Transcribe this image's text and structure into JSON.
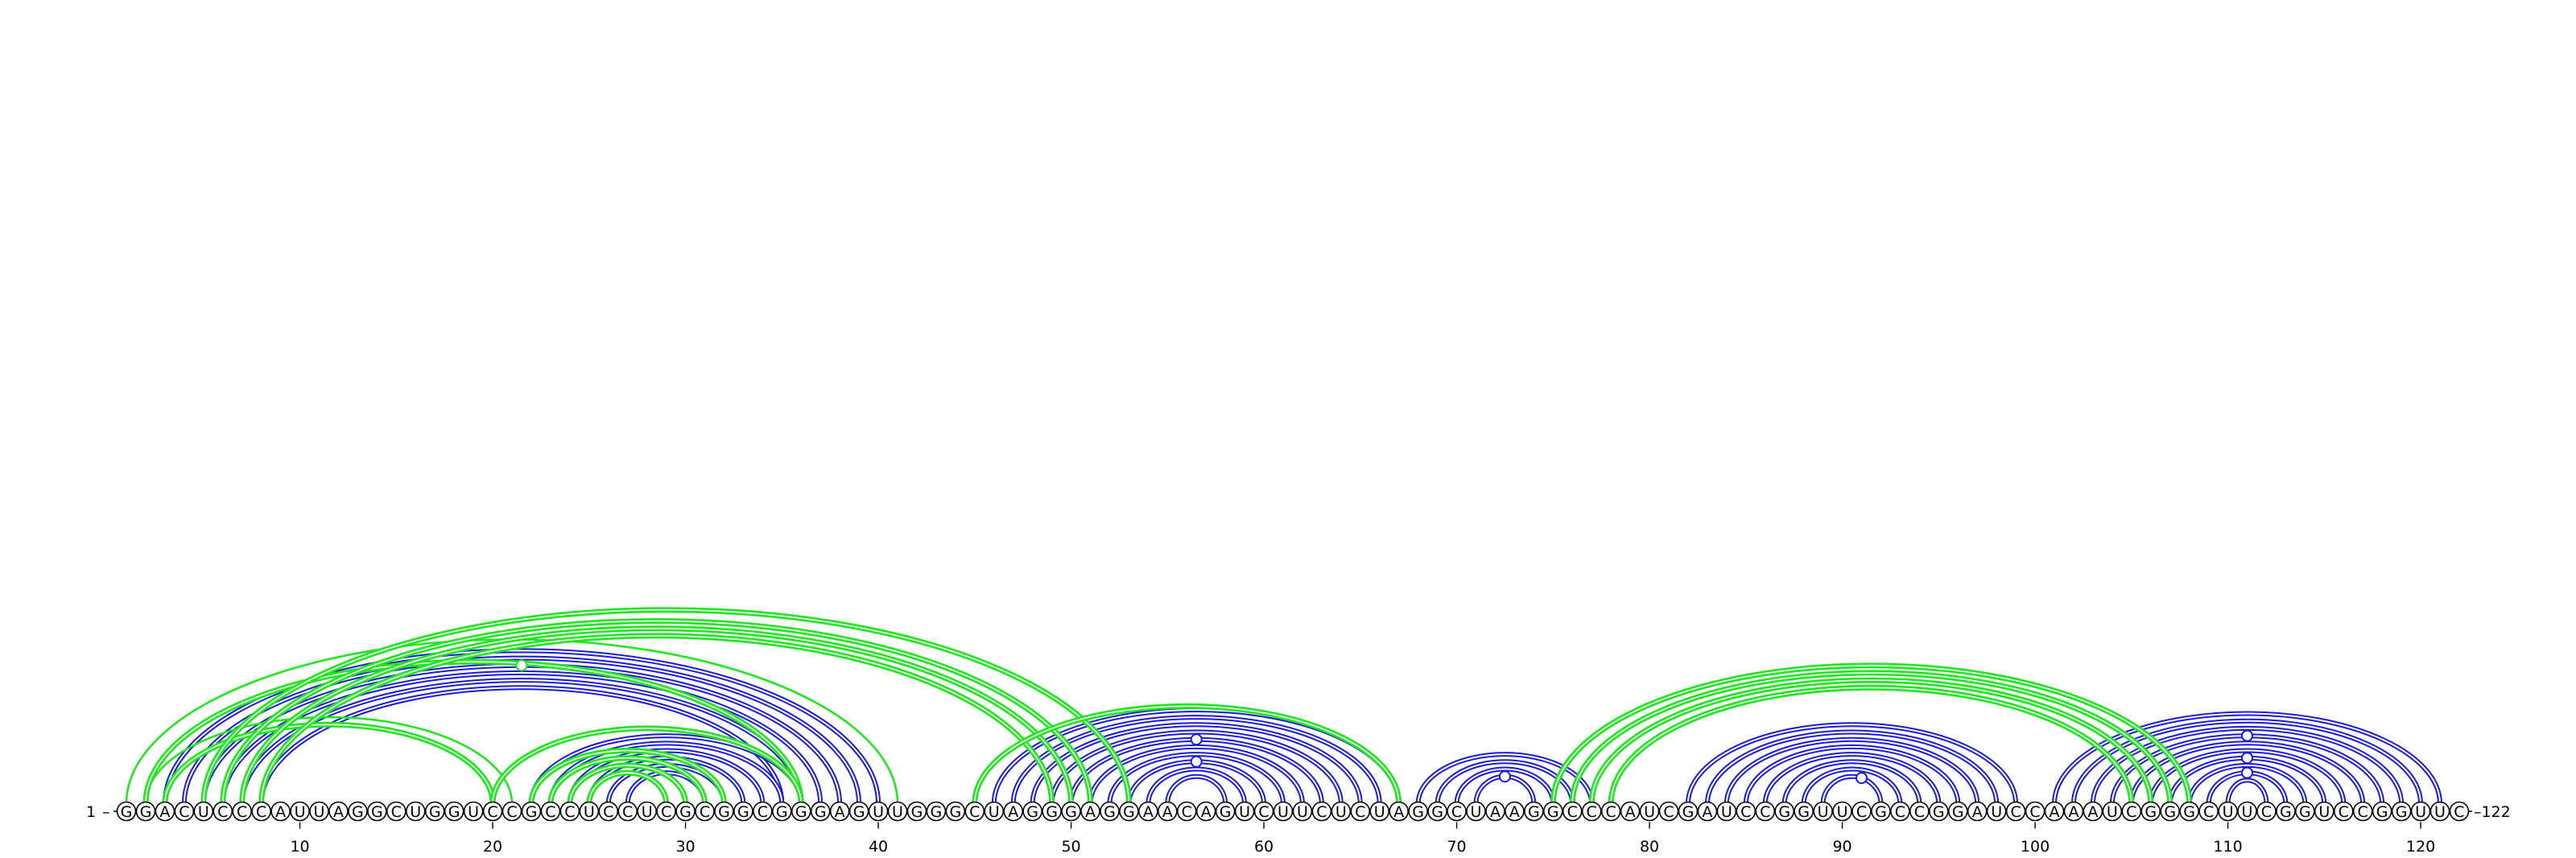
{
  "chart_data": {
    "type": "arc-diagram",
    "sequence": "GGACUCCCAUUAGGCUGGUCCGCCUCCUCGCGGCGGGAGUUGGGCUAGGGAGGAACAGUCUUCUCUAGGCUAAGGCCCAUCGAUCCGGUUCGCCGGAUCCAAAUCGGGCUUCGGUCCGGUUC",
    "length": 122,
    "start_label": "1",
    "end_label": "122",
    "ticks": [
      10,
      20,
      30,
      40,
      50,
      60,
      70,
      80,
      90,
      100,
      110,
      120
    ],
    "colors": {
      "blue": "#1a1adb",
      "green": "#22e622",
      "black": "#000000"
    },
    "blue_pairs": [
      [
        3,
        40
      ],
      [
        4,
        39
      ],
      [
        5,
        38
      ],
      [
        6,
        37
      ],
      [
        7,
        36
      ],
      [
        8,
        35
      ],
      [
        22,
        36
      ],
      [
        23,
        35
      ],
      [
        24,
        34
      ],
      [
        25,
        33
      ],
      [
        26,
        32
      ],
      [
        27,
        31
      ],
      [
        46,
        67
      ],
      [
        47,
        66
      ],
      [
        48,
        65
      ],
      [
        49,
        64
      ],
      [
        50,
        63
      ],
      [
        51,
        62
      ],
      [
        52,
        61
      ],
      [
        53,
        60
      ],
      [
        54,
        59
      ],
      [
        55,
        58
      ],
      [
        68,
        77
      ],
      [
        69,
        76
      ],
      [
        70,
        75
      ],
      [
        71,
        74
      ],
      [
        82,
        99
      ],
      [
        83,
        98
      ],
      [
        84,
        97
      ],
      [
        85,
        96
      ],
      [
        86,
        95
      ],
      [
        87,
        94
      ],
      [
        88,
        93
      ],
      [
        89,
        92
      ],
      [
        101,
        121
      ],
      [
        102,
        120
      ],
      [
        103,
        119
      ],
      [
        104,
        118
      ],
      [
        105,
        117
      ],
      [
        106,
        116
      ],
      [
        107,
        115
      ],
      [
        108,
        114
      ],
      [
        109,
        113
      ],
      [
        110,
        112
      ]
    ],
    "green_pairs": [
      [
        1,
        41,
        "thin"
      ],
      [
        2,
        21,
        "thin"
      ],
      [
        2,
        36,
        "double"
      ],
      [
        3,
        20,
        "double"
      ],
      [
        5,
        53,
        "double"
      ],
      [
        6,
        51,
        "double"
      ],
      [
        7,
        50,
        "double"
      ],
      [
        8,
        49,
        "double"
      ],
      [
        20,
        36,
        "double"
      ],
      [
        22,
        32,
        "double"
      ],
      [
        23,
        31,
        "double"
      ],
      [
        24,
        30,
        "double"
      ],
      [
        25,
        29,
        "double"
      ],
      [
        45,
        67,
        "double"
      ],
      [
        75,
        108,
        "double"
      ],
      [
        76,
        107,
        "double"
      ],
      [
        77,
        106,
        "double"
      ],
      [
        78,
        105,
        "double"
      ]
    ],
    "markers": [
      {
        "at": 21.5,
        "color": "green",
        "pair": [
          5,
          38
        ]
      },
      {
        "at": 56.5,
        "color": "blue",
        "pair": [
          50,
          63
        ]
      },
      {
        "at": 56.5,
        "color": "blue",
        "pair": [
          53,
          60
        ]
      },
      {
        "at": 72.5,
        "color": "blue",
        "pair": [
          71,
          74
        ]
      },
      {
        "at": 91,
        "color": "blue",
        "pair": [
          89,
          92
        ]
      },
      {
        "at": 111,
        "color": "blue",
        "pair": [
          104,
          118
        ]
      },
      {
        "at": 111,
        "color": "blue",
        "pair": [
          107,
          115
        ]
      },
      {
        "at": 111,
        "color": "blue",
        "pair": [
          109,
          113
        ]
      }
    ]
  }
}
